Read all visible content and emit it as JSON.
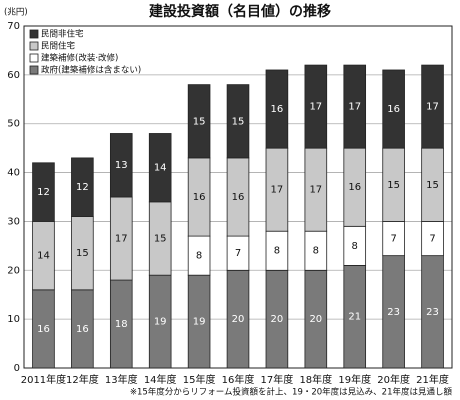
{
  "chart_data": {
    "type": "stacked-bar",
    "title": "建設投資額（名目値）の推移",
    "y_unit": "(兆円)",
    "note": "※15年度分からリフォーム投資額を計上、19・20年度は見込み、21年度は見通し額",
    "categories": [
      "2011年度",
      "12年度",
      "13年度",
      "14年度",
      "15年度",
      "16年度",
      "17年度",
      "18年度",
      "19年度",
      "20年度",
      "21年度"
    ],
    "series": [
      {
        "name": "政府(建築補修は含まない)",
        "color": "#7a7a7a",
        "values": [
          16,
          16,
          18,
          19,
          19,
          20,
          20,
          20,
          21,
          23,
          23
        ]
      },
      {
        "name": "建築補修(改装·改修)",
        "color": "#ffffff",
        "values": [
          null,
          null,
          null,
          null,
          8,
          7,
          8,
          8,
          8,
          7,
          7
        ]
      },
      {
        "name": "民間住宅",
        "color": "#c8c8c8",
        "values": [
          14,
          15,
          17,
          15,
          16,
          16,
          17,
          17,
          16,
          15,
          15
        ]
      },
      {
        "name": "民間非住宅",
        "color": "#333333",
        "values": [
          12,
          12,
          13,
          14,
          15,
          15,
          16,
          17,
          17,
          16,
          17
        ]
      }
    ],
    "ylim": [
      0,
      70
    ],
    "yticks": [
      0,
      10,
      20,
      30,
      40,
      50,
      60,
      70
    ],
    "grid": true,
    "legend": "top-left"
  }
}
